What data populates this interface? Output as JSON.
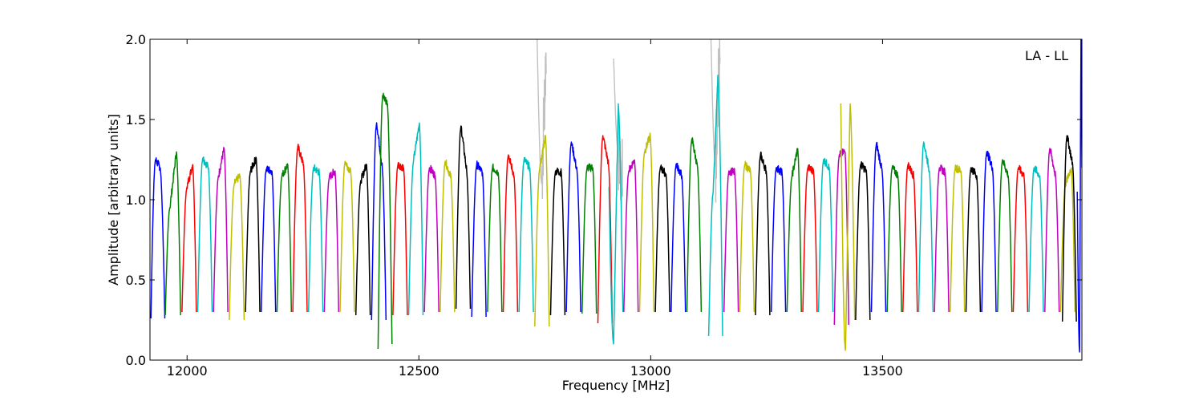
{
  "chart_data": {
    "type": "line",
    "title": "",
    "annotation": "LA - LL",
    "xlabel": "Frequency [MHz]",
    "ylabel": "Amplitude [arbitrary units]",
    "xlim": [
      11920,
      13930
    ],
    "ylim": [
      0.0,
      2.0
    ],
    "xticks": [
      12000,
      12500,
      13000,
      13500
    ],
    "yticks": [
      0.0,
      0.5,
      1.0,
      1.5,
      2.0
    ],
    "xtick_labels": [
      "12000",
      "12500",
      "13000",
      "13500"
    ],
    "ytick_labels": [
      "0.0",
      "0.5",
      "1.0",
      "1.5",
      "2.0"
    ],
    "grid": false,
    "description_of_series": "Repeating channel bandpass segments, each ~31 MHz wide, colour cycling through matplotlib default palette; grey traces show pre-flagged data.",
    "series": [
      {
        "color": "#0000ff",
        "x": [
          11922,
          11932,
          11942,
          11952
        ],
        "y": [
          0.26,
          1.25,
          1.2,
          0.26
        ]
      },
      {
        "color": "#008000",
        "x": [
          11953,
          11963,
          11977,
          11986
        ],
        "y": [
          0.28,
          0.95,
          1.3,
          0.28
        ]
      },
      {
        "color": "#ff0000",
        "x": [
          11989,
          12000,
          12012,
          12020
        ],
        "y": [
          0.3,
          1.08,
          1.22,
          0.3
        ]
      },
      {
        "color": "#00bfbf",
        "x": [
          12023,
          12034,
          12046,
          12054
        ],
        "y": [
          0.3,
          1.26,
          1.2,
          0.3
        ]
      },
      {
        "color": "#bf00bf",
        "x": [
          12057,
          12068,
          12080,
          12088
        ],
        "y": [
          0.3,
          1.15,
          1.32,
          0.3
        ]
      },
      {
        "color": "#bfbf00",
        "x": [
          12091,
          12102,
          12114,
          12123
        ],
        "y": [
          0.25,
          1.1,
          1.15,
          0.25
        ]
      },
      {
        "color": "#000000",
        "x": [
          12126,
          12137,
          12149,
          12157
        ],
        "y": [
          0.3,
          1.18,
          1.26,
          0.3
        ]
      },
      {
        "color": "#0000ff",
        "x": [
          12160,
          12171,
          12183,
          12191
        ],
        "y": [
          0.3,
          1.19,
          1.18,
          0.3
        ]
      },
      {
        "color": "#008000",
        "x": [
          12194,
          12205,
          12217,
          12225
        ],
        "y": [
          0.3,
          1.15,
          1.22,
          0.3
        ]
      },
      {
        "color": "#ff0000",
        "x": [
          12228,
          12239,
          12251,
          12259
        ],
        "y": [
          0.3,
          1.33,
          1.22,
          0.3
        ]
      },
      {
        "color": "#00bfbf",
        "x": [
          12262,
          12273,
          12285,
          12293
        ],
        "y": [
          0.3,
          1.2,
          1.17,
          0.3
        ]
      },
      {
        "color": "#bf00bf",
        "x": [
          12296,
          12307,
          12319,
          12327
        ],
        "y": [
          0.3,
          1.14,
          1.18,
          0.3
        ]
      },
      {
        "color": "#bfbf00",
        "x": [
          12330,
          12341,
          12353,
          12361
        ],
        "y": [
          0.3,
          1.24,
          1.17,
          0.3
        ]
      },
      {
        "color": "#000000",
        "x": [
          12364,
          12375,
          12387,
          12395
        ],
        "y": [
          0.28,
          1.12,
          1.22,
          0.28
        ]
      },
      {
        "color": "#0000ff",
        "x": [
          12398,
          12409,
          12421,
          12429
        ],
        "y": [
          0.25,
          1.48,
          1.2,
          0.25
        ]
      },
      {
        "color": "#008000",
        "x": [
          12412,
          12422,
          12432,
          12442
        ],
        "y": [
          0.07,
          1.65,
          1.6,
          0.1
        ]
      },
      {
        "color": "#ff0000",
        "x": [
          12444,
          12455,
          12467,
          12475
        ],
        "y": [
          0.28,
          1.22,
          1.2,
          0.28
        ]
      },
      {
        "color": "#00bfbf",
        "x": [
          12478,
          12489,
          12501,
          12509
        ],
        "y": [
          0.28,
          1.25,
          1.48,
          0.28
        ]
      },
      {
        "color": "#bf00bf",
        "x": [
          12512,
          12523,
          12535,
          12543
        ],
        "y": [
          0.3,
          1.2,
          1.15,
          0.3
        ]
      },
      {
        "color": "#bfbf00",
        "x": [
          12546,
          12557,
          12569,
          12577
        ],
        "y": [
          0.3,
          1.24,
          1.14,
          0.3
        ]
      },
      {
        "color": "#000000",
        "x": [
          12580,
          12591,
          12603,
          12611
        ],
        "y": [
          0.32,
          1.46,
          1.18,
          0.32
        ]
      },
      {
        "color": "#0000ff",
        "x": [
          12614,
          12625,
          12637,
          12645
        ],
        "y": [
          0.27,
          1.22,
          1.17,
          0.27
        ]
      },
      {
        "color": "#008000",
        "x": [
          12648,
          12659,
          12671,
          12679
        ],
        "y": [
          0.3,
          1.2,
          1.17,
          0.3
        ]
      },
      {
        "color": "#ff0000",
        "x": [
          12682,
          12693,
          12705,
          12713
        ],
        "y": [
          0.3,
          1.28,
          1.15,
          0.3
        ]
      },
      {
        "color": "#00bfbf",
        "x": [
          12716,
          12727,
          12739,
          12747
        ],
        "y": [
          0.3,
          1.25,
          1.2,
          0.3
        ]
      },
      {
        "color": "#bfbf00",
        "x": [
          12750,
          12761,
          12773,
          12781
        ],
        "y": [
          0.21,
          1.2,
          1.4,
          0.21
        ]
      },
      {
        "color": "#000000",
        "x": [
          12784,
          12795,
          12807,
          12815
        ],
        "y": [
          0.28,
          1.18,
          1.17,
          0.28
        ]
      },
      {
        "color": "#0000ff",
        "x": [
          12818,
          12829,
          12841,
          12849
        ],
        "y": [
          0.3,
          1.36,
          1.18,
          0.3
        ]
      },
      {
        "color": "#008000",
        "x": [
          12852,
          12863,
          12875,
          12883
        ],
        "y": [
          0.29,
          1.2,
          1.2,
          0.29
        ]
      },
      {
        "color": "#ff0000",
        "x": [
          12886,
          12897,
          12909,
          12917
        ],
        "y": [
          0.23,
          1.4,
          1.22,
          0.23
        ]
      },
      {
        "color": "#00bfbf",
        "x": [
          12910,
          12920,
          12930,
          12940
        ],
        "y": [
          1.08,
          0.1,
          1.6,
          0.3
        ]
      },
      {
        "color": "#bf00bf",
        "x": [
          12942,
          12953,
          12965,
          12973
        ],
        "y": [
          0.3,
          1.18,
          1.25,
          0.3
        ]
      },
      {
        "color": "#bfbf00",
        "x": [
          12976,
          12987,
          12999,
          13007
        ],
        "y": [
          0.3,
          1.3,
          1.4,
          0.3
        ]
      },
      {
        "color": "#000000",
        "x": [
          13010,
          13021,
          13033,
          13041
        ],
        "y": [
          0.3,
          1.2,
          1.16,
          0.3
        ]
      },
      {
        "color": "#0000ff",
        "x": [
          13044,
          13055,
          13067,
          13075
        ],
        "y": [
          0.3,
          1.22,
          1.15,
          0.3
        ]
      },
      {
        "color": "#008000",
        "x": [
          13078,
          13089,
          13101,
          13109
        ],
        "y": [
          0.3,
          1.38,
          1.2,
          0.3
        ]
      },
      {
        "color": "#00bfbf",
        "x": [
          13125,
          13135,
          13145,
          13155
        ],
        "y": [
          0.15,
          1.05,
          1.78,
          0.15
        ]
      },
      {
        "color": "#bf00bf",
        "x": [
          13158,
          13169,
          13181,
          13189
        ],
        "y": [
          0.3,
          1.18,
          1.17,
          0.3
        ]
      },
      {
        "color": "#bfbf00",
        "x": [
          13192,
          13203,
          13215,
          13223
        ],
        "y": [
          0.3,
          1.22,
          1.18,
          0.3
        ]
      },
      {
        "color": "#000000",
        "x": [
          13226,
          13237,
          13249,
          13257
        ],
        "y": [
          0.28,
          1.28,
          1.18,
          0.28
        ]
      },
      {
        "color": "#0000ff",
        "x": [
          13260,
          13271,
          13283,
          13291
        ],
        "y": [
          0.3,
          1.2,
          1.17,
          0.3
        ]
      },
      {
        "color": "#008000",
        "x": [
          13294,
          13305,
          13317,
          13325
        ],
        "y": [
          0.3,
          1.15,
          1.32,
          0.3
        ]
      },
      {
        "color": "#ff0000",
        "x": [
          13328,
          13339,
          13351,
          13359
        ],
        "y": [
          0.3,
          1.2,
          1.18,
          0.3
        ]
      },
      {
        "color": "#00bfbf",
        "x": [
          13362,
          13373,
          13385,
          13393
        ],
        "y": [
          0.3,
          1.25,
          1.2,
          0.3
        ]
      },
      {
        "color": "#bf00bf",
        "x": [
          13396,
          13407,
          13419,
          13427
        ],
        "y": [
          0.22,
          1.28,
          1.3,
          0.22
        ]
      },
      {
        "color": "#bfbf00",
        "x": [
          13410,
          13420,
          13430,
          13440
        ],
        "y": [
          1.6,
          0.06,
          1.6,
          0.25
        ]
      },
      {
        "color": "#000000",
        "x": [
          13442,
          13453,
          13465,
          13473
        ],
        "y": [
          0.25,
          1.22,
          1.18,
          0.25
        ]
      },
      {
        "color": "#0000ff",
        "x": [
          13476,
          13487,
          13499,
          13507
        ],
        "y": [
          0.3,
          1.35,
          1.18,
          0.3
        ]
      },
      {
        "color": "#008000",
        "x": [
          13510,
          13521,
          13533,
          13541
        ],
        "y": [
          0.3,
          1.2,
          1.15,
          0.3
        ]
      },
      {
        "color": "#ff0000",
        "x": [
          13544,
          13555,
          13567,
          13575
        ],
        "y": [
          0.3,
          1.22,
          1.15,
          0.3
        ]
      },
      {
        "color": "#00bfbf",
        "x": [
          13578,
          13589,
          13601,
          13609
        ],
        "y": [
          0.3,
          1.36,
          1.18,
          0.3
        ]
      },
      {
        "color": "#bf00bf",
        "x": [
          13612,
          13623,
          13635,
          13643
        ],
        "y": [
          0.3,
          1.2,
          1.17,
          0.3
        ]
      },
      {
        "color": "#bfbf00",
        "x": [
          13646,
          13657,
          13669,
          13677
        ],
        "y": [
          0.3,
          1.2,
          1.18,
          0.3
        ]
      },
      {
        "color": "#000000",
        "x": [
          13680,
          13691,
          13703,
          13711
        ],
        "y": [
          0.3,
          1.2,
          1.15,
          0.3
        ]
      },
      {
        "color": "#0000ff",
        "x": [
          13714,
          13725,
          13737,
          13745
        ],
        "y": [
          0.3,
          1.3,
          1.2,
          0.3
        ]
      },
      {
        "color": "#008000",
        "x": [
          13748,
          13759,
          13771,
          13779
        ],
        "y": [
          0.3,
          1.25,
          1.15,
          0.3
        ]
      },
      {
        "color": "#ff0000",
        "x": [
          13782,
          13793,
          13805,
          13813
        ],
        "y": [
          0.3,
          1.2,
          1.15,
          0.3
        ]
      },
      {
        "color": "#00bfbf",
        "x": [
          13816,
          13827,
          13839,
          13847
        ],
        "y": [
          0.3,
          1.2,
          1.15,
          0.3
        ]
      },
      {
        "color": "#bf00bf",
        "x": [
          13850,
          13861,
          13873,
          13881
        ],
        "y": [
          0.3,
          1.32,
          1.15,
          0.3
        ]
      },
      {
        "color": "#bfbf00",
        "x": [
          13884,
          13895,
          13907,
          13915
        ],
        "y": [
          0.3,
          1.1,
          1.2,
          0.3
        ]
      },
      {
        "color": "#000000",
        "x": [
          13888,
          13898,
          13910,
          13918
        ],
        "y": [
          0.24,
          1.4,
          1.22,
          0.24
        ]
      },
      {
        "color": "#0000ff",
        "x": [
          13920,
          13925,
          13928,
          13930
        ],
        "y": [
          1.05,
          0.05,
          2.0,
          1.2
        ]
      }
    ],
    "flagged_series": [
      {
        "color": "#c0c0c0",
        "x": [
          12755,
          12765,
          12775
        ],
        "y": [
          2.0,
          1.1,
          2.0
        ]
      },
      {
        "color": "#c0c0c0",
        "x": [
          13130,
          13140,
          13150
        ],
        "y": [
          2.0,
          1.2,
          2.0
        ]
      },
      {
        "color": "#c0c0c0",
        "x": [
          12920,
          12930,
          12940
        ],
        "y": [
          1.88,
          1.3,
          1.1
        ]
      }
    ]
  }
}
